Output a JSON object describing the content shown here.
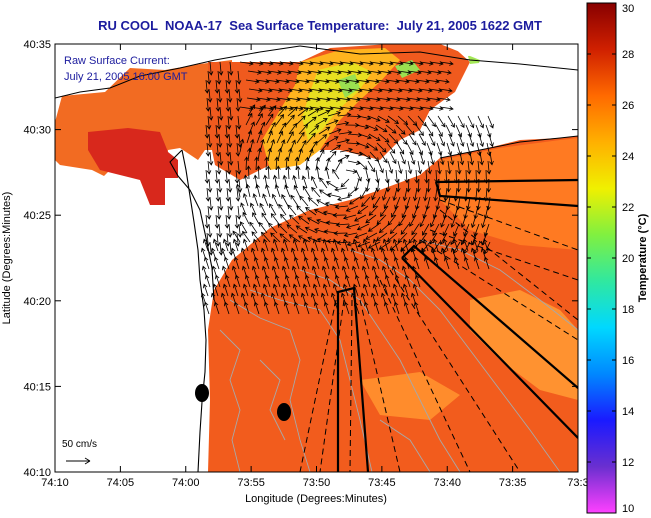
{
  "title": "RU COOL  NOAA-17  Sea Surface Temperature:  July 21, 2005 1622 GMT",
  "overlay": {
    "line1": "Raw Surface Current:",
    "line2": "July 21, 2005 16:00 GMT"
  },
  "x_axis": {
    "label": "Longitude (Degrees:Minutes)",
    "ticks": [
      "74:10",
      "74:05",
      "74:00",
      "73:55",
      "73:50",
      "73:45",
      "73:40",
      "73:35",
      "73:3"
    ]
  },
  "y_axis": {
    "label": "Latitude (Degrees:Minutes)",
    "ticks": [
      "40:35",
      "40:30",
      "40:25",
      "40:20",
      "40:15",
      "40:10"
    ]
  },
  "colorbar": {
    "label": "Temperature (°C)",
    "ticks": [
      "30",
      "28",
      "26",
      "24",
      "22",
      "20",
      "18",
      "16",
      "14",
      "12",
      "10"
    ],
    "min": 10,
    "max": 30,
    "colors": [
      "#ff40ff",
      "#6a2fd0",
      "#1a1aff",
      "#0088ff",
      "#00d8ff",
      "#30e8a0",
      "#80f040",
      "#f0f000",
      "#ffb000",
      "#ff6a00",
      "#d02000",
      "#880000"
    ]
  },
  "scale": {
    "label": "50 cm/s"
  },
  "colors": {
    "land": "#ffffff",
    "sst_warm": "#f05a1e",
    "sst_cool": "#ff8a1e",
    "sst_hot": "#d8281c",
    "vector": "#000000",
    "bathymetry": "#a8a8a8",
    "title": "#1c1c9e"
  }
}
